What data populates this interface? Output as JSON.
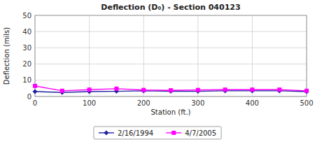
{
  "chart_data": {
    "type": "line",
    "title": "Deflection (D₀) - Section 040123",
    "x_label": "Station (ft.)",
    "y_label": "Deflection (mils)",
    "x": [
      0,
      50,
      100,
      150,
      200,
      250,
      300,
      350,
      400,
      450,
      500
    ],
    "series": [
      {
        "name": "2/16/1994",
        "color": "#2020a0",
        "marker": "diamond",
        "values": [
          3.0,
          2.5,
          3.0,
          3.2,
          3.5,
          3.2,
          3.2,
          3.5,
          3.5,
          3.5,
          3.0
        ]
      },
      {
        "name": "4/7/2005",
        "color": "#ff00ff",
        "marker": "square",
        "values": [
          6.5,
          3.5,
          4.2,
          4.8,
          4.0,
          3.8,
          4.0,
          4.2,
          4.2,
          4.2,
          3.5
        ]
      }
    ],
    "xlim": [
      0,
      500
    ],
    "ylim": [
      0,
      50
    ],
    "xticks": [
      0,
      100,
      200,
      300,
      400,
      500
    ],
    "yticks": [
      0,
      10,
      20,
      30,
      40,
      50
    ],
    "grid": true,
    "legend": "bottom"
  }
}
